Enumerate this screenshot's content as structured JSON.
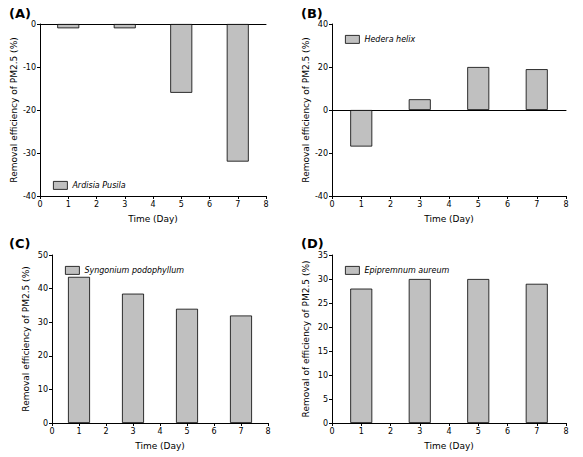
{
  "chart_data": [
    {
      "type": "bar",
      "title": "(A)",
      "x": [
        1,
        3,
        5,
        7
      ],
      "series": [
        {
          "name": "Ardisia Pusila",
          "color": "#c0c0c0",
          "values": [
            -1,
            -1,
            -16,
            -32
          ]
        }
      ],
      "xlabel": "Time (Day)",
      "ylabel": "Removal efficiency of PM2.5 (%)",
      "xlim": [
        0,
        8
      ],
      "xticks": [
        0,
        1,
        2,
        3,
        4,
        5,
        6,
        7,
        8
      ],
      "ylim": [
        -40,
        0
      ],
      "yticks": [
        -40,
        -30,
        -20,
        -10,
        0
      ],
      "legend": "lower left",
      "grid": false
    },
    {
      "type": "bar",
      "title": "(B)",
      "x": [
        1,
        3,
        5,
        7
      ],
      "series": [
        {
          "name": "Hedera helix",
          "color": "#c0c0c0",
          "values": [
            -17,
            5,
            20,
            19
          ]
        }
      ],
      "xlabel": "Time (Day)",
      "ylabel": "Removal efficiency of PM2.5 (%)",
      "xlim": [
        0,
        8
      ],
      "xticks": [
        0,
        1,
        2,
        3,
        4,
        5,
        6,
        7,
        8
      ],
      "ylim": [
        -40,
        40
      ],
      "yticks": [
        -40,
        -20,
        0,
        20,
        40
      ],
      "legend": "upper left",
      "grid": false
    },
    {
      "type": "bar",
      "title": "(C)",
      "x": [
        1,
        3,
        5,
        7
      ],
      "series": [
        {
          "name": "Syngonium podophyllum",
          "color": "#c0c0c0",
          "values": [
            43.5,
            38.5,
            34,
            32
          ]
        }
      ],
      "xlabel": "Time (Day)",
      "ylabel": "Removal efficiency of PM2.5 (%)",
      "xlim": [
        0,
        8
      ],
      "xticks": [
        0,
        1,
        2,
        3,
        4,
        5,
        6,
        7,
        8
      ],
      "ylim": [
        0,
        50
      ],
      "yticks": [
        0,
        10,
        20,
        30,
        40,
        50
      ],
      "legend": "upper left",
      "grid": false
    },
    {
      "type": "bar",
      "title": "(D)",
      "x": [
        1,
        3,
        5,
        7
      ],
      "series": [
        {
          "name": "Epipremnum aureum",
          "color": "#c0c0c0",
          "values": [
            28,
            30,
            30,
            29
          ]
        }
      ],
      "xlabel": "Time (Day)",
      "ylabel": "Removal of efficiency of PM2.5 (%)",
      "xlim": [
        0,
        8
      ],
      "xticks": [
        0,
        1,
        2,
        3,
        4,
        5,
        6,
        7,
        8
      ],
      "ylim": [
        0,
        35
      ],
      "yticks": [
        0,
        5,
        10,
        15,
        20,
        25,
        30,
        35
      ],
      "legend": "upper left",
      "grid": false
    }
  ]
}
